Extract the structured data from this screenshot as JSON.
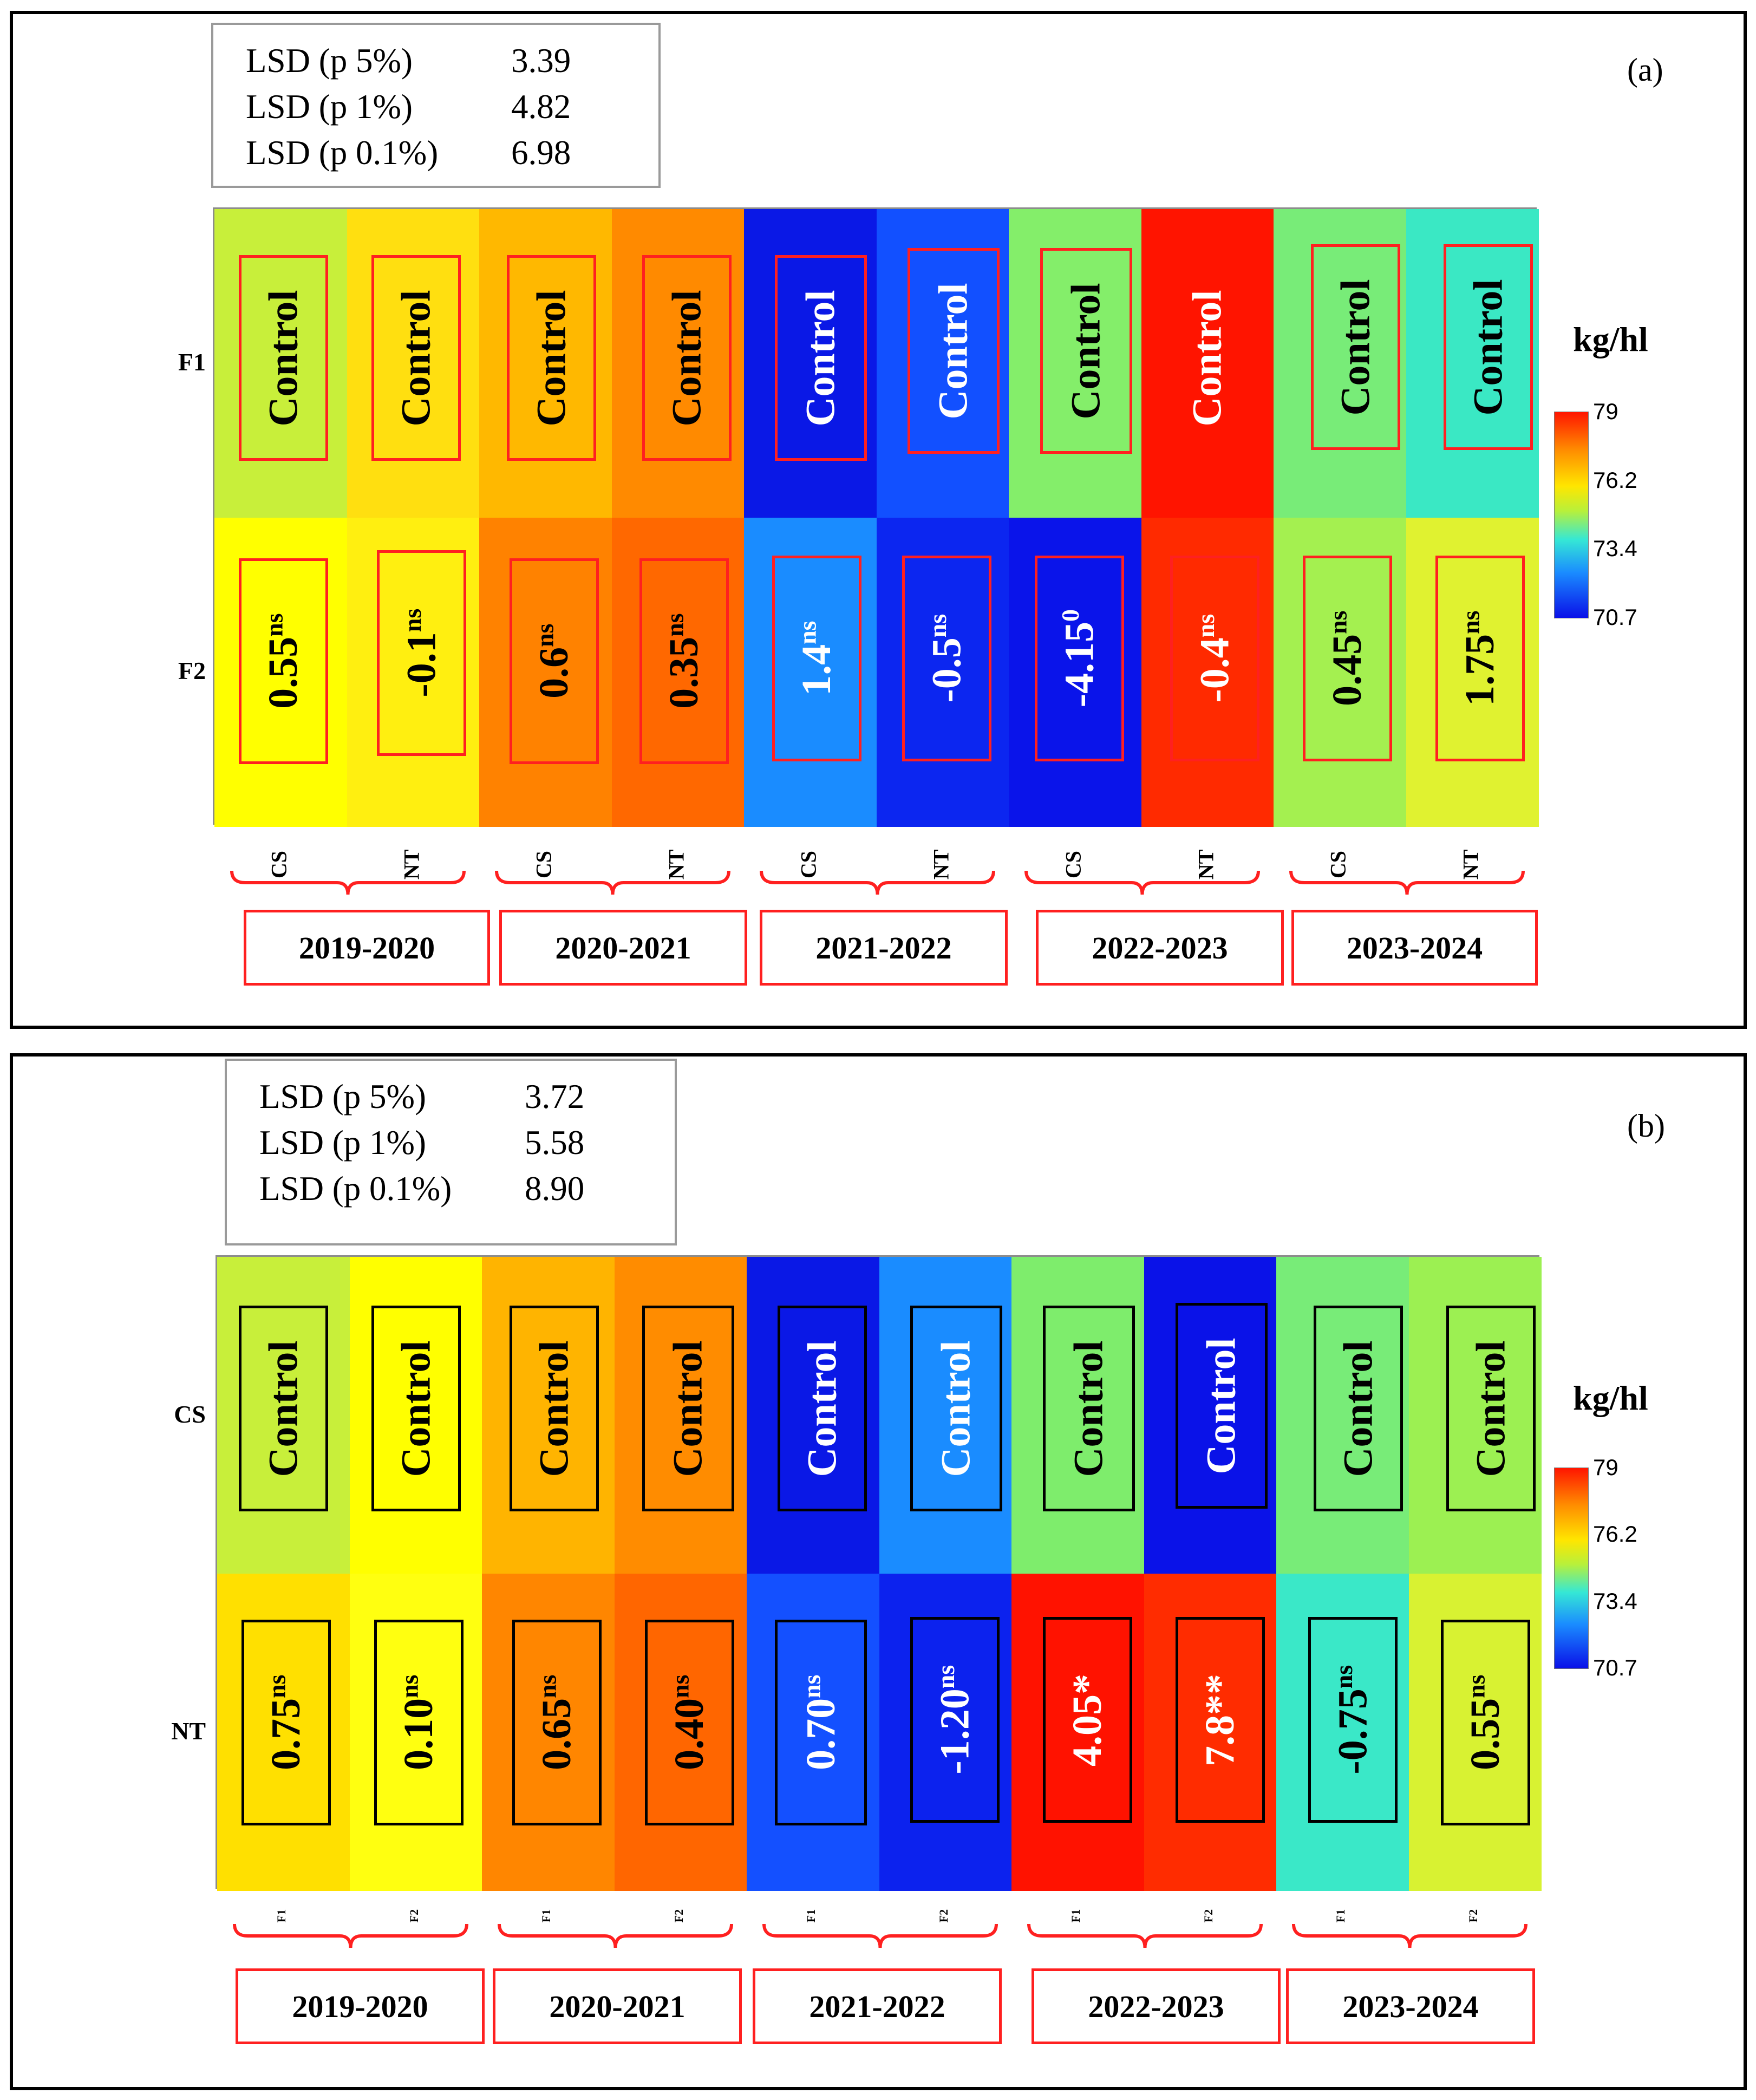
{
  "colors": {
    "outline_red": "#ff2020",
    "outline_black": "#000000",
    "text_light": "#ffffff",
    "text_dark": "#000000"
  },
  "chart_data": [
    {
      "type": "heatmap",
      "panel_label": "(a)",
      "unit": "kg/hl",
      "colorbar": {
        "min": 70.7,
        "max": 79,
        "ticks": [
          "79",
          "76.2",
          "73.4",
          "70.7"
        ]
      },
      "lsd": [
        {
          "label": "LSD (p 5%)",
          "value": "3.39"
        },
        {
          "label": "LSD (p 1%)",
          "value": "4.82"
        },
        {
          "label": "LSD (p 0.1%)",
          "value": "6.98"
        }
      ],
      "rows": [
        "F1",
        "F2"
      ],
      "columns": [
        "CS",
        "NT",
        "CS",
        "NT",
        "CS",
        "NT",
        "CS",
        "NT",
        "CS",
        "NT"
      ],
      "column_label_size": "normal",
      "years": [
        "2019-2020",
        "2020-2021",
        "2021-2022",
        "2022-2023",
        "2023-2024"
      ],
      "cell_colors": [
        [
          "#c8ef3a",
          "#ffdf10",
          "#ffb800",
          "#ff8a00",
          "#0a18e6",
          "#1250ff",
          "#84ee6a",
          "#ff1400",
          "#78ec78",
          "#3ae8c4"
        ],
        [
          "#ffff00",
          "#ffef10",
          "#ff8200",
          "#ff6800",
          "#1a8cff",
          "#0c26f0",
          "#0a14ea",
          "#ff2a00",
          "#a4f050",
          "#e0f230"
        ]
      ],
      "text_colors": [
        [
          "dark",
          "dark",
          "dark",
          "dark",
          "light",
          "light",
          "dark",
          "light",
          "dark",
          "dark"
        ],
        [
          "dark",
          "dark",
          "dark",
          "dark",
          "light",
          "light",
          "light",
          "light",
          "dark",
          "dark"
        ]
      ],
      "box_color": "red",
      "box_visible": [
        [
          true,
          true,
          true,
          true,
          true,
          true,
          true,
          false,
          true,
          true
        ],
        [
          true,
          true,
          true,
          true,
          true,
          true,
          true,
          true,
          true,
          true
        ]
      ],
      "cells": [
        [
          {
            "text": "Control",
            "sup": ""
          },
          {
            "text": "Control",
            "sup": ""
          },
          {
            "text": "Control",
            "sup": ""
          },
          {
            "text": "Control",
            "sup": ""
          },
          {
            "text": "Control",
            "sup": ""
          },
          {
            "text": "Control",
            "sup": ""
          },
          {
            "text": "Control",
            "sup": ""
          },
          {
            "text": "Control",
            "sup": ""
          },
          {
            "text": "Control",
            "sup": ""
          },
          {
            "text": "Control",
            "sup": ""
          }
        ],
        [
          {
            "text": "0.55",
            "sup": "ns"
          },
          {
            "text": "-0.1",
            "sup": "ns"
          },
          {
            "text": "0.6",
            "sup": "ns"
          },
          {
            "text": "0.35",
            "sup": "ns"
          },
          {
            "text": "1.4",
            "sup": "ns"
          },
          {
            "text": "-0.5",
            "sup": "ns"
          },
          {
            "text": "-4.15",
            "sup": "0"
          },
          {
            "text": "-0.4",
            "sup": "ns"
          },
          {
            "text": "0.45",
            "sup": "ns"
          },
          {
            "text": "1.75",
            "sup": "ns"
          }
        ]
      ]
    },
    {
      "type": "heatmap",
      "panel_label": "(b)",
      "unit": "kg/hl",
      "colorbar": {
        "min": 70.7,
        "max": 79,
        "ticks": [
          "79",
          "76.2",
          "73.4",
          "70.7"
        ]
      },
      "lsd": [
        {
          "label": "LSD (p 5%)",
          "value": "3.72"
        },
        {
          "label": "LSD (p 1%)",
          "value": "5.58"
        },
        {
          "label": "LSD (p 0.1%)",
          "value": "8.90"
        }
      ],
      "rows": [
        "CS",
        "NT"
      ],
      "columns": [
        "F1",
        "F2",
        "F1",
        "F2",
        "F1",
        "F2",
        "F1",
        "F2",
        "F1",
        "F2"
      ],
      "column_label_size": "small",
      "years": [
        "2019-2020",
        "2020-2021",
        "2021-2022",
        "2022-2023",
        "2023-2024"
      ],
      "cell_colors": [
        [
          "#c8ef3a",
          "#ffff00",
          "#ffb400",
          "#ff8c00",
          "#0a18e6",
          "#1a8cff",
          "#7eed6c",
          "#0a12e8",
          "#78ec78",
          "#9cf052"
        ],
        [
          "#ffe000",
          "#ffff10",
          "#ff8600",
          "#ff6600",
          "#1450ff",
          "#0c22ee",
          "#ff1200",
          "#ff2c00",
          "#3ae8c8",
          "#d8f232"
        ]
      ],
      "text_colors": [
        [
          "dark",
          "dark",
          "dark",
          "dark",
          "light",
          "light",
          "dark",
          "light",
          "dark",
          "dark"
        ],
        [
          "dark",
          "dark",
          "dark",
          "dark",
          "light",
          "light",
          "light",
          "light",
          "dark",
          "dark"
        ]
      ],
      "box_color": "black",
      "box_visible": [
        [
          true,
          true,
          true,
          true,
          true,
          true,
          true,
          true,
          true,
          true
        ],
        [
          true,
          true,
          true,
          true,
          true,
          true,
          true,
          true,
          true,
          true
        ]
      ],
      "cells": [
        [
          {
            "text": "Control",
            "sup": ""
          },
          {
            "text": "Control",
            "sup": ""
          },
          {
            "text": "Control",
            "sup": ""
          },
          {
            "text": "Control",
            "sup": ""
          },
          {
            "text": "Control",
            "sup": ""
          },
          {
            "text": "Control",
            "sup": ""
          },
          {
            "text": "Control",
            "sup": ""
          },
          {
            "text": "Control",
            "sup": ""
          },
          {
            "text": "Control",
            "sup": ""
          },
          {
            "text": "Control",
            "sup": ""
          }
        ],
        [
          {
            "text": "0.75",
            "sup": "ns"
          },
          {
            "text": "0.10",
            "sup": "ns"
          },
          {
            "text": "0.65",
            "sup": "ns"
          },
          {
            "text": "0.40",
            "sup": "ns"
          },
          {
            "text": "0.70",
            "sup": "ns"
          },
          {
            "text": "-1.20",
            "sup": "ns"
          },
          {
            "text": "4.05*",
            "sup": ""
          },
          {
            "text": "7.8**",
            "sup": ""
          },
          {
            "text": "-0.75",
            "sup": "ns"
          },
          {
            "text": "0.55",
            "sup": "ns"
          }
        ]
      ]
    }
  ]
}
